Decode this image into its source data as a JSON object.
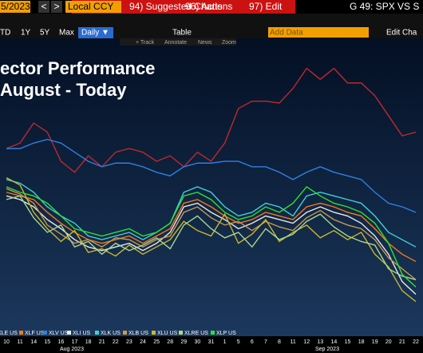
{
  "toolbar": {
    "date": "5/2023",
    "prev": "<",
    "next": ">",
    "currency": "Local CCY",
    "menu": [
      "94) Suggested Charts",
      "96) Actions",
      "97) Edit"
    ],
    "ticker": "G 49: SPX VS S",
    "periods": [
      "TD",
      "1Y",
      "5Y",
      "Max"
    ],
    "frequency": "Daily ▼",
    "table": "Table",
    "add_data": "Add Data",
    "edit": "Edit Cha",
    "tools": [
      "+ Track",
      "Annotate",
      "News",
      "Zoom"
    ]
  },
  "chart_data": {
    "type": "line",
    "title": "ector Performance",
    "subtitle": "August - Today",
    "categories": [
      "10",
      "11",
      "14",
      "15",
      "16",
      "17",
      "18",
      "21",
      "22",
      "23",
      "24",
      "25",
      "28",
      "29",
      "30",
      "31",
      "1",
      "5",
      "6",
      "7",
      "8",
      "11",
      "12",
      "13",
      "14",
      "15",
      "18",
      "19",
      "20",
      "21",
      "22"
    ],
    "month_labels": [
      "Aug 2023",
      "Sep 2023"
    ],
    "ylim": [
      -10,
      6
    ],
    "series": [
      {
        "name": "XLE US",
        "color": "#c0282c",
        "values": [
          -0.4,
          -0.1,
          1.0,
          0.5,
          -1.1,
          -1.7,
          -0.8,
          -1.4,
          -0.6,
          -0.4,
          -0.6,
          -1.1,
          -0.8,
          -1.4,
          -0.6,
          -1.1,
          -0.1,
          1.8,
          2.2,
          2.2,
          2.1,
          2.9,
          4.0,
          3.4,
          4.0,
          3.2,
          3.2,
          2.5,
          1.4,
          0.3,
          0.5
        ]
      },
      {
        "name": "XLF US",
        "color": "#f07a1a",
        "values": [
          -2.8,
          -3.0,
          -3.2,
          -3.9,
          -4.5,
          -5.0,
          -5.4,
          -5.6,
          -5.4,
          -5.2,
          -5.6,
          -5.2,
          -4.8,
          -3.4,
          -3.2,
          -3.6,
          -4.1,
          -4.5,
          -4.3,
          -3.9,
          -4.1,
          -4.3,
          -3.6,
          -3.4,
          -3.6,
          -3.9,
          -4.1,
          -4.8,
          -5.6,
          -6.2,
          -6.6
        ]
      },
      {
        "name": "XLV US",
        "color": "#2f7fe0",
        "values": [
          -0.4,
          -0.4,
          -0.1,
          0.1,
          -0.1,
          -0.6,
          -1.1,
          -1.4,
          -1.2,
          -1.2,
          -1.4,
          -1.7,
          -1.9,
          -1.4,
          -1.2,
          -1.2,
          -1.1,
          -1.1,
          -1.4,
          -1.4,
          -1.7,
          -2.1,
          -1.7,
          -1.4,
          -1.7,
          -1.9,
          -2.1,
          -2.8,
          -3.4,
          -3.6,
          -3.9
        ]
      },
      {
        "name": "XLI US",
        "color": "#e8e8e8",
        "values": [
          -3.0,
          -3.2,
          -3.6,
          -4.3,
          -4.8,
          -5.4,
          -5.8,
          -6.0,
          -5.8,
          -5.6,
          -6.0,
          -5.6,
          -5.0,
          -3.6,
          -3.4,
          -3.9,
          -4.3,
          -4.8,
          -4.5,
          -4.1,
          -4.3,
          -4.5,
          -3.9,
          -3.6,
          -3.9,
          -4.1,
          -4.5,
          -5.2,
          -6.2,
          -7.7,
          -8.4
        ]
      },
      {
        "name": "XLK US",
        "color": "#3fd0d8",
        "values": [
          -2.1,
          -2.3,
          -2.8,
          -3.6,
          -4.1,
          -4.5,
          -5.2,
          -5.4,
          -5.2,
          -5.0,
          -5.4,
          -5.0,
          -4.5,
          -2.8,
          -2.5,
          -2.8,
          -3.6,
          -4.1,
          -3.9,
          -3.4,
          -3.6,
          -4.1,
          -3.0,
          -2.8,
          -3.0,
          -3.2,
          -3.4,
          -4.1,
          -5.0,
          -5.4,
          -5.8
        ]
      },
      {
        "name": "XLB US",
        "color": "#c89a50",
        "values": [
          -2.6,
          -2.9,
          -3.4,
          -4.6,
          -5.1,
          -5.6,
          -5.4,
          -5.8,
          -5.3,
          -5.4,
          -5.8,
          -5.4,
          -5.2,
          -3.9,
          -3.6,
          -4.2,
          -4.6,
          -4.4,
          -4.9,
          -4.4,
          -4.7,
          -4.9,
          -4.2,
          -3.8,
          -4.3,
          -4.6,
          -4.8,
          -5.4,
          -6.4,
          -7.0,
          -7.6
        ]
      },
      {
        "name": "XLU US",
        "color": "#c8b830",
        "values": [
          -2.0,
          -2.4,
          -3.9,
          -4.8,
          -5.5,
          -4.9,
          -6.1,
          -5.9,
          -6.3,
          -5.7,
          -6.2,
          -5.8,
          -5.4,
          -4.4,
          -4.9,
          -5.2,
          -4.0,
          -5.6,
          -5.1,
          -4.3,
          -5.5,
          -5.0,
          -4.6,
          -5.3,
          -4.9,
          -5.4,
          -5.0,
          -6.2,
          -6.9,
          -8.2,
          -8.8
        ]
      },
      {
        "name": "XLRE US",
        "color": "#a8d890",
        "values": [
          -3.2,
          -3.0,
          -4.2,
          -5.0,
          -4.6,
          -5.8,
          -5.5,
          -6.2,
          -5.6,
          -6.0,
          -5.7,
          -5.3,
          -5.9,
          -4.6,
          -4.1,
          -4.8,
          -5.3,
          -5.0,
          -5.8,
          -4.8,
          -5.4,
          -5.1,
          -4.4,
          -4.0,
          -4.7,
          -5.2,
          -5.5,
          -5.7,
          -7.0,
          -7.4,
          -7.6
        ]
      },
      {
        "name": "XLP US",
        "color": "#30e030",
        "values": [
          -2.5,
          -2.8,
          -3.0,
          -3.4,
          -4.1,
          -4.8,
          -5.0,
          -5.2,
          -5.0,
          -4.8,
          -5.2,
          -5.0,
          -4.5,
          -3.0,
          -2.8,
          -3.2,
          -3.9,
          -4.3,
          -4.1,
          -3.6,
          -3.9,
          -3.4,
          -2.5,
          -3.0,
          -3.4,
          -3.6,
          -3.9,
          -4.5,
          -5.6,
          -7.3,
          -8.0
        ]
      }
    ]
  }
}
